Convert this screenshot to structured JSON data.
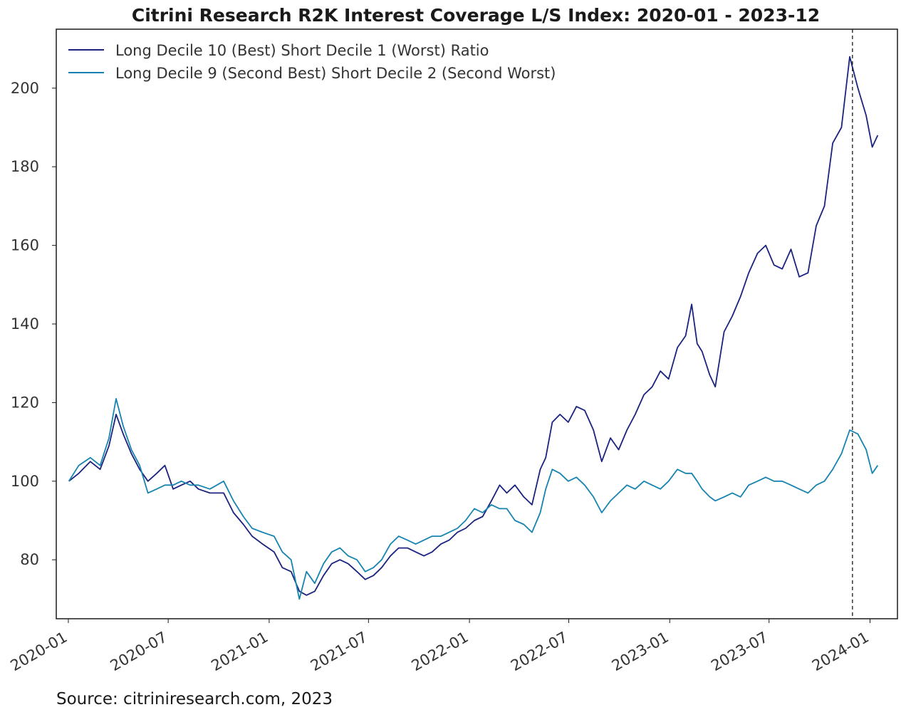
{
  "chart_data": {
    "type": "line",
    "title": "Citrini Research R2K Interest Coverage L/S Index: 2020-01 - 2023-12",
    "xlabel": "",
    "ylabel": "",
    "x_ticks": [
      "2020-01",
      "2020-07",
      "2021-01",
      "2021-07",
      "2022-01",
      "2022-07",
      "2023-01",
      "2023-07",
      "2024-01"
    ],
    "y_ticks": [
      80,
      100,
      120,
      140,
      160,
      180,
      200
    ],
    "xlim": [
      "2019-12-10",
      "2024-02-20"
    ],
    "ylim": [
      65,
      215
    ],
    "grid": false,
    "legend_position": "top-left",
    "vline": {
      "x": "2023-11-30",
      "style": "dashed"
    },
    "series": [
      {
        "name": "Long Decile 10 (Best) Short Decile 1 (Worst) Ratio",
        "color": "#1a237e",
        "points": [
          [
            "2020-01-02",
            100
          ],
          [
            "2020-01-20",
            102
          ],
          [
            "2020-02-10",
            105
          ],
          [
            "2020-02-28",
            103
          ],
          [
            "2020-03-15",
            109
          ],
          [
            "2020-03-28",
            117
          ],
          [
            "2020-04-10",
            112
          ],
          [
            "2020-04-25",
            107
          ],
          [
            "2020-05-10",
            103
          ],
          [
            "2020-05-25",
            100
          ],
          [
            "2020-06-10",
            102
          ],
          [
            "2020-06-25",
            104
          ],
          [
            "2020-07-10",
            98
          ],
          [
            "2020-07-25",
            99
          ],
          [
            "2020-08-10",
            100
          ],
          [
            "2020-08-25",
            98
          ],
          [
            "2020-09-15",
            97
          ],
          [
            "2020-10-10",
            97
          ],
          [
            "2020-10-28",
            92
          ],
          [
            "2020-11-15",
            89
          ],
          [
            "2020-12-01",
            86
          ],
          [
            "2020-12-20",
            84
          ],
          [
            "2021-01-10",
            82
          ],
          [
            "2021-01-25",
            78
          ],
          [
            "2021-02-10",
            77
          ],
          [
            "2021-02-25",
            72
          ],
          [
            "2021-03-10",
            71
          ],
          [
            "2021-03-25",
            72
          ],
          [
            "2021-04-10",
            76
          ],
          [
            "2021-04-25",
            79
          ],
          [
            "2021-05-10",
            80
          ],
          [
            "2021-05-25",
            79
          ],
          [
            "2021-06-10",
            77
          ],
          [
            "2021-06-25",
            75
          ],
          [
            "2021-07-10",
            76
          ],
          [
            "2021-07-25",
            78
          ],
          [
            "2021-08-10",
            81
          ],
          [
            "2021-08-25",
            83
          ],
          [
            "2021-09-10",
            83
          ],
          [
            "2021-09-25",
            82
          ],
          [
            "2021-10-10",
            81
          ],
          [
            "2021-10-25",
            82
          ],
          [
            "2021-11-10",
            84
          ],
          [
            "2021-11-25",
            85
          ],
          [
            "2021-12-10",
            87
          ],
          [
            "2021-12-25",
            88
          ],
          [
            "2022-01-10",
            90
          ],
          [
            "2022-01-25",
            91
          ],
          [
            "2022-02-10",
            95
          ],
          [
            "2022-02-25",
            99
          ],
          [
            "2022-03-10",
            97
          ],
          [
            "2022-03-25",
            99
          ],
          [
            "2022-04-10",
            96
          ],
          [
            "2022-04-25",
            94
          ],
          [
            "2022-05-10",
            103
          ],
          [
            "2022-05-20",
            106
          ],
          [
            "2022-06-01",
            115
          ],
          [
            "2022-06-15",
            117
          ],
          [
            "2022-06-30",
            115
          ],
          [
            "2022-07-15",
            119
          ],
          [
            "2022-07-30",
            118
          ],
          [
            "2022-08-15",
            113
          ],
          [
            "2022-08-30",
            105
          ],
          [
            "2022-09-15",
            111
          ],
          [
            "2022-09-30",
            108
          ],
          [
            "2022-10-15",
            113
          ],
          [
            "2022-10-30",
            117
          ],
          [
            "2022-11-15",
            122
          ],
          [
            "2022-11-30",
            124
          ],
          [
            "2022-12-15",
            128
          ],
          [
            "2022-12-30",
            126
          ],
          [
            "2023-01-15",
            134
          ],
          [
            "2023-01-30",
            137
          ],
          [
            "2023-02-10",
            145
          ],
          [
            "2023-02-20",
            135
          ],
          [
            "2023-03-01",
            133
          ],
          [
            "2023-03-15",
            127
          ],
          [
            "2023-03-25",
            124
          ],
          [
            "2023-04-10",
            138
          ],
          [
            "2023-04-25",
            142
          ],
          [
            "2023-05-10",
            147
          ],
          [
            "2023-05-25",
            153
          ],
          [
            "2023-06-10",
            158
          ],
          [
            "2023-06-25",
            160
          ],
          [
            "2023-07-10",
            155
          ],
          [
            "2023-07-25",
            154
          ],
          [
            "2023-08-10",
            159
          ],
          [
            "2023-08-25",
            152
          ],
          [
            "2023-09-10",
            153
          ],
          [
            "2023-09-25",
            165
          ],
          [
            "2023-10-10",
            170
          ],
          [
            "2023-10-25",
            186
          ],
          [
            "2023-11-10",
            190
          ],
          [
            "2023-11-25",
            208
          ],
          [
            "2023-12-10",
            200
          ],
          [
            "2023-12-25",
            193
          ],
          [
            "2024-01-05",
            185
          ],
          [
            "2024-01-15",
            188
          ]
        ]
      },
      {
        "name": "Long Decile 9 (Second Best) Short Decile 2 (Second Worst)",
        "color": "#1784b0",
        "points": [
          [
            "2020-01-02",
            100
          ],
          [
            "2020-01-20",
            104
          ],
          [
            "2020-02-10",
            106
          ],
          [
            "2020-02-28",
            104
          ],
          [
            "2020-03-15",
            111
          ],
          [
            "2020-03-28",
            121
          ],
          [
            "2020-04-10",
            114
          ],
          [
            "2020-04-25",
            108
          ],
          [
            "2020-05-10",
            104
          ],
          [
            "2020-05-25",
            97
          ],
          [
            "2020-06-10",
            98
          ],
          [
            "2020-06-25",
            99
          ],
          [
            "2020-07-10",
            99
          ],
          [
            "2020-07-25",
            100
          ],
          [
            "2020-08-10",
            99
          ],
          [
            "2020-08-25",
            99
          ],
          [
            "2020-09-15",
            98
          ],
          [
            "2020-10-10",
            100
          ],
          [
            "2020-10-28",
            95
          ],
          [
            "2020-11-15",
            91
          ],
          [
            "2020-12-01",
            88
          ],
          [
            "2020-12-20",
            87
          ],
          [
            "2021-01-10",
            86
          ],
          [
            "2021-01-25",
            82
          ],
          [
            "2021-02-10",
            80
          ],
          [
            "2021-02-25",
            70
          ],
          [
            "2021-03-10",
            77
          ],
          [
            "2021-03-25",
            74
          ],
          [
            "2021-04-10",
            79
          ],
          [
            "2021-04-25",
            82
          ],
          [
            "2021-05-10",
            83
          ],
          [
            "2021-05-25",
            81
          ],
          [
            "2021-06-10",
            80
          ],
          [
            "2021-06-25",
            77
          ],
          [
            "2021-07-10",
            78
          ],
          [
            "2021-07-25",
            80
          ],
          [
            "2021-08-10",
            84
          ],
          [
            "2021-08-25",
            86
          ],
          [
            "2021-09-10",
            85
          ],
          [
            "2021-09-25",
            84
          ],
          [
            "2021-10-10",
            85
          ],
          [
            "2021-10-25",
            86
          ],
          [
            "2021-11-10",
            86
          ],
          [
            "2021-11-25",
            87
          ],
          [
            "2021-12-10",
            88
          ],
          [
            "2021-12-25",
            90
          ],
          [
            "2022-01-10",
            93
          ],
          [
            "2022-01-25",
            92
          ],
          [
            "2022-02-10",
            94
          ],
          [
            "2022-02-25",
            93
          ],
          [
            "2022-03-10",
            93
          ],
          [
            "2022-03-25",
            90
          ],
          [
            "2022-04-10",
            89
          ],
          [
            "2022-04-25",
            87
          ],
          [
            "2022-05-10",
            92
          ],
          [
            "2022-05-20",
            98
          ],
          [
            "2022-06-01",
            103
          ],
          [
            "2022-06-15",
            102
          ],
          [
            "2022-06-30",
            100
          ],
          [
            "2022-07-15",
            101
          ],
          [
            "2022-07-30",
            99
          ],
          [
            "2022-08-15",
            96
          ],
          [
            "2022-08-30",
            92
          ],
          [
            "2022-09-15",
            95
          ],
          [
            "2022-09-30",
            97
          ],
          [
            "2022-10-15",
            99
          ],
          [
            "2022-10-30",
            98
          ],
          [
            "2022-11-15",
            100
          ],
          [
            "2022-11-30",
            99
          ],
          [
            "2022-12-15",
            98
          ],
          [
            "2022-12-30",
            100
          ],
          [
            "2023-01-15",
            103
          ],
          [
            "2023-01-30",
            102
          ],
          [
            "2023-02-10",
            102
          ],
          [
            "2023-02-20",
            100
          ],
          [
            "2023-03-01",
            98
          ],
          [
            "2023-03-15",
            96
          ],
          [
            "2023-03-25",
            95
          ],
          [
            "2023-04-10",
            96
          ],
          [
            "2023-04-25",
            97
          ],
          [
            "2023-05-10",
            96
          ],
          [
            "2023-05-25",
            99
          ],
          [
            "2023-06-10",
            100
          ],
          [
            "2023-06-25",
            101
          ],
          [
            "2023-07-10",
            100
          ],
          [
            "2023-07-25",
            100
          ],
          [
            "2023-08-10",
            99
          ],
          [
            "2023-08-25",
            98
          ],
          [
            "2023-09-10",
            97
          ],
          [
            "2023-09-25",
            99
          ],
          [
            "2023-10-10",
            100
          ],
          [
            "2023-10-25",
            103
          ],
          [
            "2023-11-10",
            107
          ],
          [
            "2023-11-25",
            113
          ],
          [
            "2023-12-10",
            112
          ],
          [
            "2023-12-25",
            108
          ],
          [
            "2024-01-05",
            102
          ],
          [
            "2024-01-15",
            104
          ]
        ]
      }
    ]
  },
  "source": "Source: citriniresearch.com, 2023"
}
